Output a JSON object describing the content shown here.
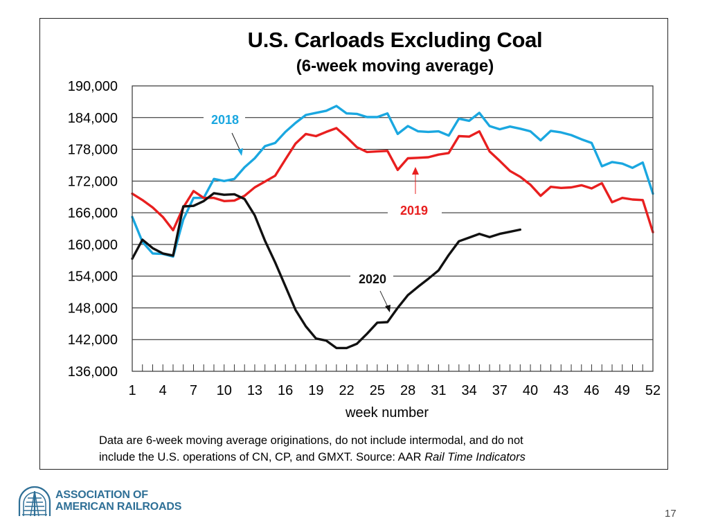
{
  "chart_data": {
    "type": "line",
    "title": "U.S. Carloads Excluding Coal",
    "subtitle": "(6-week moving average)",
    "xlabel": "week number",
    "ylabel": "",
    "xlim": [
      1,
      52
    ],
    "ylim": [
      136000,
      190000
    ],
    "yticks": [
      136000,
      142000,
      148000,
      154000,
      160000,
      166000,
      172000,
      178000,
      184000,
      190000
    ],
    "ytick_labels": [
      "136,000",
      "142,000",
      "148,000",
      "154,000",
      "160,000",
      "166,000",
      "172,000",
      "178,000",
      "184,000",
      "190,000"
    ],
    "xticks": [
      1,
      4,
      7,
      10,
      13,
      16,
      19,
      22,
      25,
      28,
      31,
      34,
      37,
      40,
      43,
      46,
      49,
      52
    ],
    "xtick_labels": [
      "1",
      "4",
      "7",
      "10",
      "13",
      "16",
      "19",
      "22",
      "25",
      "28",
      "31",
      "34",
      "37",
      "40",
      "43",
      "46",
      "49",
      "52"
    ],
    "grid": "horizontal",
    "series": [
      {
        "name": "2018",
        "color": "#1aa7e0",
        "x": [
          1,
          2,
          3,
          4,
          5,
          6,
          7,
          8,
          9,
          10,
          11,
          12,
          13,
          14,
          15,
          16,
          17,
          18,
          19,
          20,
          21,
          22,
          23,
          24,
          25,
          26,
          27,
          28,
          29,
          30,
          31,
          32,
          33,
          34,
          35,
          36,
          37,
          38,
          39,
          40,
          41,
          42,
          43,
          44,
          45,
          46,
          47,
          48,
          49,
          50,
          51,
          52
        ],
        "values": [
          165200,
          160500,
          158300,
          158200,
          157700,
          164700,
          168800,
          168800,
          172400,
          172000,
          172400,
          174600,
          176300,
          178600,
          179200,
          181300,
          183000,
          184500,
          184900,
          185300,
          186200,
          184800,
          184700,
          184100,
          184100,
          184800,
          180900,
          182400,
          181400,
          181300,
          181400,
          180600,
          183800,
          183400,
          184900,
          182400,
          181800,
          182300,
          181900,
          181400,
          179700,
          181500,
          181200,
          180700,
          179900,
          179200,
          174800,
          175600,
          175300,
          174500,
          175500,
          169600
        ]
      },
      {
        "name": "2019",
        "color": "#e81f1f",
        "x": [
          1,
          2,
          3,
          4,
          5,
          6,
          7,
          8,
          9,
          10,
          11,
          12,
          13,
          14,
          15,
          16,
          17,
          18,
          19,
          20,
          21,
          22,
          23,
          24,
          25,
          26,
          27,
          28,
          29,
          30,
          31,
          32,
          33,
          34,
          35,
          36,
          37,
          38,
          39,
          40,
          41,
          42,
          43,
          44,
          45,
          46,
          47,
          48,
          49,
          50,
          51,
          52
        ],
        "values": [
          169600,
          168400,
          167000,
          165200,
          162700,
          167000,
          170100,
          168800,
          168800,
          168200,
          168300,
          169200,
          170800,
          171900,
          173000,
          176100,
          179100,
          180900,
          180500,
          181300,
          182000,
          180300,
          178400,
          177500,
          177600,
          177700,
          174100,
          176300,
          176400,
          176500,
          177000,
          177300,
          180500,
          180400,
          181400,
          177600,
          175800,
          173900,
          172800,
          171300,
          169200,
          170900,
          170700,
          170800,
          171200,
          170600,
          171600,
          168000,
          168800,
          168500,
          168400,
          162300
        ]
      },
      {
        "name": "2020",
        "color": "#111111",
        "x": [
          1,
          2,
          3,
          4,
          5,
          6,
          7,
          8,
          9,
          10,
          11,
          12,
          13,
          14,
          15,
          16,
          17,
          18,
          19,
          20,
          21,
          22,
          23,
          24,
          25,
          26,
          27,
          28,
          29,
          30,
          31,
          32,
          33,
          34,
          35,
          36,
          37,
          38,
          39
        ],
        "values": [
          157300,
          160900,
          159300,
          158300,
          157900,
          167200,
          167300,
          168200,
          169700,
          169400,
          169500,
          168600,
          165500,
          160700,
          156600,
          152100,
          147600,
          144500,
          142200,
          141800,
          140400,
          140400,
          141200,
          143100,
          145200,
          145300,
          148000,
          150400,
          152000,
          153500,
          155100,
          158000,
          160600,
          161300,
          162000,
          161400,
          162000,
          162400,
          162800
        ]
      }
    ],
    "annotations": [
      {
        "text": "2018",
        "series": "2018",
        "points_to_week": 12
      },
      {
        "text": "2019",
        "series": "2019",
        "points_to_week": 28
      },
      {
        "text": "2020",
        "series": "2020",
        "points_to_week": 27
      }
    ]
  },
  "footnote": {
    "line1": "Data are 6-week moving average originations, do not include intermodal, and do not",
    "line2_a": "include the U.S. operations of CN, CP, and GMXT.   Source: AAR ",
    "line2_b": "Rail Time Indicators"
  },
  "logo": {
    "line1": "ASSOCIATION OF",
    "line2": "AMERICAN RAILROADS",
    "color": "#2e6f96"
  },
  "page_number": "17"
}
